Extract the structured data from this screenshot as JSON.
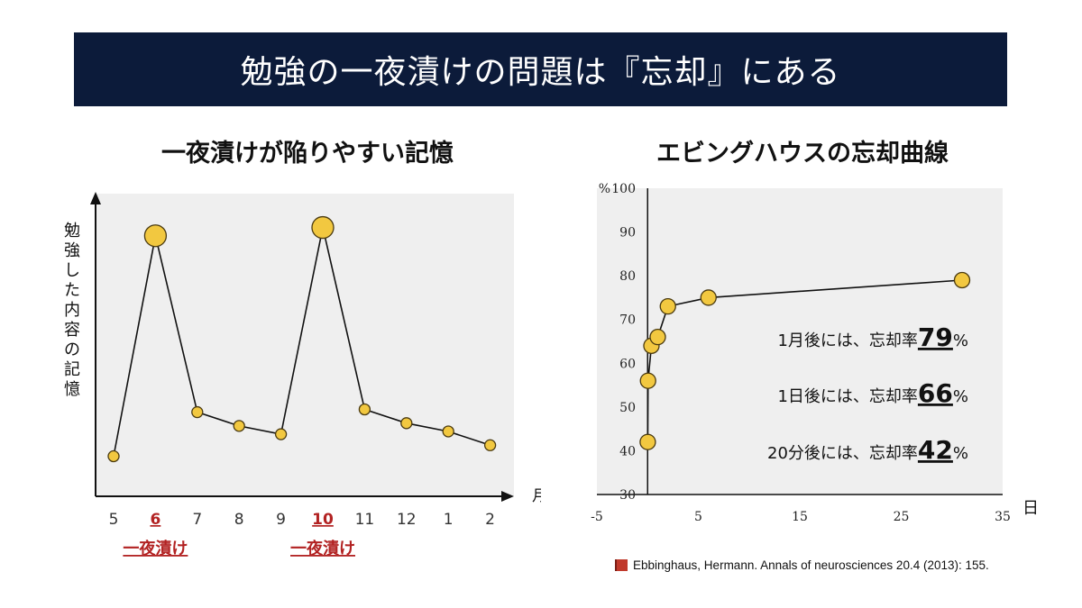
{
  "title": "勉強の一夜漬けの問題は『忘却』にある",
  "left_title": "一夜漬けが陥りやすい記憶",
  "right_title": "エビングハウスの忘却曲線",
  "colors": {
    "title_bg": "#0c1b3a",
    "marker_fill": "#f2c840",
    "marker_stroke": "#4a3a10",
    "highlight": "#b22222",
    "plot_bg": "#efefef"
  },
  "chart_data": [
    {
      "type": "line",
      "title": "一夜漬けが陥りやすい記憶",
      "ylabel": "勉強した内容の記憶",
      "xlabel": "月",
      "categories": [
        "5",
        "6",
        "7",
        "8",
        "9",
        "10",
        "11",
        "12",
        "1",
        "2"
      ],
      "values": [
        8,
        88,
        24,
        19,
        16,
        91,
        25,
        20,
        17,
        12
      ],
      "large_markers": [
        "6",
        "10"
      ],
      "highlighted_categories": [
        "6",
        "10"
      ],
      "highlight_label": "一夜漬け",
      "y_ticks_shown": false,
      "grid": false,
      "ylim": [
        0,
        100
      ]
    },
    {
      "type": "line",
      "title": "エビングハウスの忘却曲線",
      "ylabel": "%",
      "xlabel": "日",
      "x": [
        0.014,
        0.042,
        0.375,
        1,
        2,
        6,
        31
      ],
      "y": [
        42,
        56,
        64,
        66,
        73,
        75,
        79
      ],
      "xlim": [
        -5,
        35
      ],
      "ylim": [
        30,
        100
      ],
      "xticks": [
        -5,
        5,
        15,
        25,
        35
      ],
      "yticks": [
        30,
        40,
        50,
        60,
        70,
        80,
        90,
        100
      ],
      "grid": false,
      "annotations": [
        {
          "prefix": "1月後には、忘却率",
          "value": "79",
          "suffix": "%"
        },
        {
          "prefix": "1日後には、忘却率",
          "value": "66",
          "suffix": "%"
        },
        {
          "prefix": "20分後には、忘却率",
          "value": "42",
          "suffix": "%"
        }
      ]
    }
  ],
  "citation": {
    "icon": "book-icon",
    "text": "Ebbinghaus, Hermann. Annals of neurosciences 20.4 (2013): 155."
  }
}
